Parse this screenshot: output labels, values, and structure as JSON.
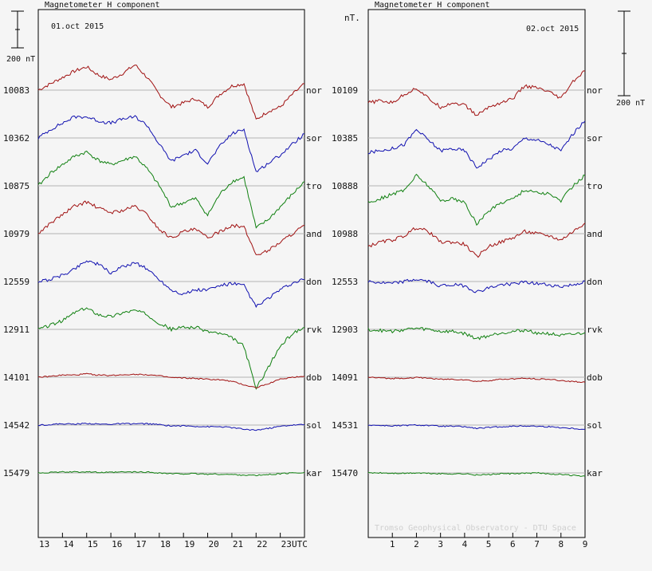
{
  "panels": [
    {
      "header": "Magnetometer H component",
      "date": "01.oct 2015",
      "x_ticks": [
        "13",
        "14",
        "15",
        "16",
        "17",
        "18",
        "19",
        "20",
        "21",
        "22",
        "23"
      ],
      "x_unit": "UTC"
    },
    {
      "header": "Magnetometer H component",
      "date": "02.oct 2015",
      "x_ticks": [
        "1",
        "2",
        "3",
        "4",
        "5",
        "6",
        "7",
        "8",
        "9"
      ],
      "units": "nT."
    }
  ],
  "scale": {
    "left": "200 nT",
    "right": "200 nT"
  },
  "credit": "Tromso Geophysical Observatory - DTU Space",
  "stations": [
    {
      "code": "nor",
      "color": "#a01010",
      "base_left": "10083",
      "base_right": "10109"
    },
    {
      "code": "sor",
      "color": "#1010b0",
      "base_left": "10362",
      "base_right": "10385"
    },
    {
      "code": "tro",
      "color": "#108010",
      "base_left": "10875",
      "base_right": "10888"
    },
    {
      "code": "and",
      "color": "#a01010",
      "base_left": "10979",
      "base_right": "10988"
    },
    {
      "code": "don",
      "color": "#1010b0",
      "base_left": "12559",
      "base_right": "12553"
    },
    {
      "code": "rvk",
      "color": "#108010",
      "base_left": "12911",
      "base_right": "12903"
    },
    {
      "code": "dob",
      "color": "#a01010",
      "base_left": "14101",
      "base_right": "14091"
    },
    {
      "code": "sol",
      "color": "#1010b0",
      "base_left": "14542",
      "base_right": "14531"
    },
    {
      "code": "kar",
      "color": "#108010",
      "base_left": "15479",
      "base_right": "15470"
    }
  ],
  "chart_data": [
    {
      "type": "line",
      "title": "Magnetometer H component",
      "subtitle": "01.oct 2015",
      "xlabel": "UTC",
      "x_range": [
        13,
        24
      ],
      "y_unit": "nT (deviation from station baseline)",
      "x": [
        13,
        13.5,
        14,
        14.5,
        15,
        15.5,
        16,
        16.5,
        17,
        17.5,
        18,
        18.5,
        19,
        19.5,
        20,
        20.5,
        21,
        21.5,
        22,
        22.5,
        23,
        23.5,
        24
      ],
      "series": [
        {
          "name": "nor",
          "values": [
            0,
            15,
            30,
            45,
            55,
            35,
            25,
            40,
            60,
            30,
            -10,
            -40,
            -30,
            -20,
            -40,
            -10,
            10,
            15,
            -70,
            -50,
            -40,
            -10,
            15
          ]
        },
        {
          "name": "sor",
          "values": [
            0,
            20,
            35,
            50,
            50,
            40,
            35,
            45,
            50,
            30,
            -15,
            -55,
            -40,
            -30,
            -60,
            -20,
            10,
            20,
            -80,
            -60,
            -40,
            -15,
            10
          ]
        },
        {
          "name": "tro",
          "values": [
            0,
            30,
            50,
            70,
            80,
            60,
            50,
            60,
            70,
            40,
            0,
            -50,
            -40,
            -30,
            -70,
            -20,
            10,
            20,
            -100,
            -80,
            -50,
            -20,
            10
          ]
        },
        {
          "name": "and",
          "values": [
            0,
            25,
            45,
            65,
            75,
            60,
            50,
            55,
            65,
            45,
            10,
            -10,
            5,
            10,
            -10,
            5,
            20,
            15,
            -50,
            -40,
            -20,
            0,
            20
          ]
        },
        {
          "name": "don",
          "values": [
            0,
            5,
            15,
            30,
            50,
            40,
            20,
            35,
            45,
            30,
            5,
            -20,
            -30,
            -20,
            -20,
            -10,
            -5,
            -10,
            -60,
            -40,
            -20,
            -5,
            5
          ]
        },
        {
          "name": "rvk",
          "values": [
            0,
            10,
            20,
            40,
            50,
            35,
            30,
            40,
            45,
            35,
            15,
            0,
            5,
            5,
            -5,
            -10,
            -20,
            -40,
            -140,
            -90,
            -40,
            -10,
            5
          ]
        },
        {
          "name": "dob",
          "values": [
            0,
            2,
            5,
            5,
            8,
            5,
            4,
            6,
            7,
            6,
            3,
            -1,
            -2,
            -3,
            -5,
            -6,
            -10,
            -18,
            -25,
            -15,
            -5,
            0,
            2
          ]
        },
        {
          "name": "sol",
          "values": [
            0,
            1,
            3,
            2,
            4,
            2,
            2,
            3,
            3,
            3,
            1,
            -2,
            -2,
            -3,
            -4,
            -4,
            -6,
            -10,
            -12,
            -8,
            -3,
            0,
            1
          ]
        },
        {
          "name": "kar",
          "values": [
            0,
            1,
            2,
            2,
            3,
            1,
            1,
            2,
            2,
            2,
            0,
            -2,
            -2,
            -2,
            -3,
            -3,
            -4,
            -5,
            -6,
            -4,
            -2,
            0,
            1
          ]
        }
      ]
    },
    {
      "type": "line",
      "title": "Magnetometer H component",
      "subtitle": "02.oct 2015",
      "x_range": [
        0,
        9
      ],
      "y_unit": "nT. (deviation from station baseline)",
      "x": [
        0,
        0.5,
        1,
        1.5,
        2,
        2.5,
        3,
        3.5,
        4,
        4.5,
        5,
        5.5,
        6,
        6.5,
        7,
        7.5,
        8,
        8.5,
        9
      ],
      "series": [
        {
          "name": "nor",
          "values": [
            -30,
            -25,
            -30,
            -10,
            5,
            -20,
            -40,
            -30,
            -35,
            -60,
            -40,
            -30,
            -20,
            10,
            5,
            -5,
            -20,
            20,
            45
          ]
        },
        {
          "name": "sor",
          "values": [
            -35,
            -30,
            -25,
            -15,
            20,
            -5,
            -30,
            -25,
            -30,
            -70,
            -50,
            -30,
            -25,
            0,
            -5,
            -15,
            -30,
            10,
            40
          ]
        },
        {
          "name": "tro",
          "values": [
            -40,
            -30,
            -20,
            -10,
            25,
            0,
            -35,
            -30,
            -40,
            -90,
            -60,
            -40,
            -30,
            -10,
            -15,
            -20,
            -35,
            0,
            25
          ]
        },
        {
          "name": "and",
          "values": [
            -30,
            -20,
            -15,
            -5,
            15,
            5,
            -20,
            -20,
            -25,
            -55,
            -30,
            -20,
            -10,
            5,
            0,
            -5,
            -15,
            5,
            25
          ]
        },
        {
          "name": "don",
          "values": [
            0,
            -3,
            -5,
            0,
            5,
            0,
            -10,
            -8,
            -10,
            -25,
            -15,
            -8,
            -5,
            -2,
            -5,
            -8,
            -12,
            -8,
            0
          ]
        },
        {
          "name": "rvk",
          "values": [
            0,
            -3,
            -5,
            0,
            2,
            0,
            -5,
            -5,
            -10,
            -22,
            -15,
            -8,
            -5,
            -2,
            -8,
            -10,
            -15,
            -12,
            -8
          ]
        },
        {
          "name": "dob",
          "values": [
            0,
            -2,
            -3,
            -2,
            -1,
            -2,
            -5,
            -5,
            -6,
            -10,
            -8,
            -5,
            -4,
            -3,
            -4,
            -5,
            -8,
            -10,
            -12
          ]
        },
        {
          "name": "sol",
          "values": [
            0,
            -1,
            -2,
            -1,
            0,
            -1,
            -3,
            -3,
            -4,
            -8,
            -6,
            -4,
            -3,
            -2,
            -3,
            -4,
            -6,
            -8,
            -10
          ]
        },
        {
          "name": "kar",
          "values": [
            0,
            0,
            -1,
            -1,
            0,
            -1,
            -2,
            -2,
            -2,
            -5,
            -4,
            -2,
            -2,
            -1,
            0,
            -2,
            -4,
            -6,
            -8
          ]
        }
      ]
    }
  ]
}
